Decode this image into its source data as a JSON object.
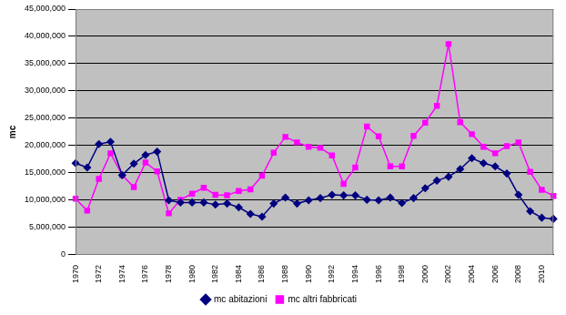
{
  "chart_data": {
    "type": "line",
    "y_label": "mc",
    "categories": [
      "1970",
      null,
      "1972",
      null,
      "1974",
      null,
      "1976",
      null,
      "1978",
      null,
      "1980",
      null,
      "1982",
      null,
      "1984",
      null,
      "1986",
      null,
      "1988",
      null,
      "1990",
      null,
      "1992",
      null,
      "1994",
      null,
      "1996",
      null,
      "1998",
      null,
      "2000",
      null,
      "2002",
      null,
      "2004",
      null,
      "2006",
      null,
      "2008",
      null,
      "2010",
      null
    ],
    "series": [
      {
        "name": "mc abitazioni",
        "color": "#000080",
        "marker": "diamond",
        "line_style": "solid",
        "values": [
          16800000,
          16000000,
          20300000,
          20700000,
          14600000,
          16700000,
          18300000,
          18900000,
          10000000,
          9600000,
          9600000,
          9600000,
          9200000,
          9400000,
          8700000,
          7500000,
          7000000,
          9400000,
          10500000,
          9400000,
          10000000,
          10400000,
          11000000,
          10900000,
          10900000,
          10100000,
          10000000,
          10500000,
          9500000,
          10400000,
          12200000,
          13600000,
          14300000,
          15700000,
          17700000,
          16800000,
          16200000,
          14900000,
          11000000,
          8000000,
          6800000,
          6600000
        ]
      },
      {
        "name": "mc altri fabbricati",
        "color": "#ff00ff",
        "marker": "square",
        "line_style": "solid",
        "values": [
          10300000,
          8100000,
          13900000,
          18600000,
          14600000,
          12400000,
          16900000,
          15300000,
          7600000,
          10100000,
          11200000,
          12300000,
          11000000,
          10900000,
          11700000,
          12000000,
          14500000,
          18700000,
          21600000,
          20600000,
          19800000,
          19600000,
          18200000,
          13000000,
          16000000,
          23500000,
          21700000,
          16200000,
          16200000,
          21800000,
          24200000,
          27300000,
          38600000,
          24300000,
          22100000,
          19800000,
          18600000,
          19900000,
          20600000,
          15200000,
          11900000,
          10800000
        ]
      }
    ],
    "ylim": [
      0,
      45000000
    ],
    "yticks": [
      0,
      {
        "value": 5000000,
        "label": "5,000,000"
      },
      {
        "value": 10000000,
        "label": "10,000,000"
      },
      {
        "value": 15000000,
        "label": "15,000,000"
      },
      {
        "value": 20000000,
        "label": "20,000,000"
      },
      {
        "value": 25000000,
        "label": "25,000,000"
      },
      {
        "value": 30000000,
        "label": "30,000,000"
      },
      {
        "value": 35000000,
        "label": "35,000,000"
      },
      {
        "value": 40000000,
        "label": "40,000,000"
      },
      {
        "value": 45000000,
        "label": "45,000,000"
      }
    ],
    "grid": true,
    "legend": "bottom"
  }
}
